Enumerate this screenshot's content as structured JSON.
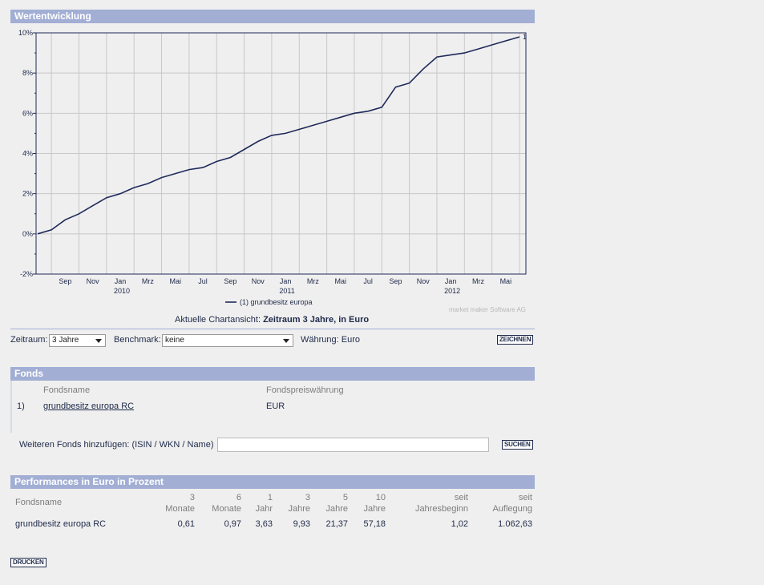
{
  "wertentwicklung": {
    "title": "Wertentwicklung"
  },
  "chart_data": {
    "type": "line",
    "title": "",
    "xlabel": "",
    "ylabel": "",
    "ylim": [
      -2,
      10
    ],
    "y_ticks": [
      "10%",
      "8%",
      "6%",
      "4%",
      "2%",
      "0%",
      "-2%"
    ],
    "x_ticks": [
      "Sep",
      "Nov",
      "Jan",
      "Mrz",
      "Mai",
      "Jul",
      "Sep",
      "Nov",
      "Jan",
      "Mrz",
      "Mai",
      "Jul",
      "Sep",
      "Nov",
      "Jan",
      "Mrz",
      "Mai"
    ],
    "x_years": [
      "2010",
      "2011",
      "2012"
    ],
    "grid": true,
    "legend_position": "bottom-center",
    "end_label": "1",
    "series": [
      {
        "name": "(1)  grundbesitz europa",
        "color": "#1f2a5a",
        "x": [
          "2009-07",
          "2009-08",
          "2009-09",
          "2009-10",
          "2009-11",
          "2009-12",
          "2010-01",
          "2010-02",
          "2010-03",
          "2010-04",
          "2010-05",
          "2010-06",
          "2010-07",
          "2010-08",
          "2010-09",
          "2010-10",
          "2010-11",
          "2010-12",
          "2011-01",
          "2011-02",
          "2011-03",
          "2011-04",
          "2011-05",
          "2011-06",
          "2011-07",
          "2011-08",
          "2011-09",
          "2011-10",
          "2011-11",
          "2011-12",
          "2012-01",
          "2012-02",
          "2012-03",
          "2012-04",
          "2012-05",
          "2012-06"
        ],
        "values": [
          0.0,
          0.2,
          0.7,
          1.0,
          1.4,
          1.8,
          2.0,
          2.3,
          2.5,
          2.8,
          3.0,
          3.2,
          3.3,
          3.6,
          3.8,
          4.2,
          4.6,
          4.9,
          5.0,
          5.2,
          5.4,
          5.6,
          5.8,
          6.0,
          6.1,
          6.3,
          7.3,
          7.5,
          8.2,
          8.8,
          8.9,
          9.0,
          9.2,
          9.4,
          9.6,
          9.8
        ]
      }
    ]
  },
  "chart_notes": {
    "credit": "market maker Software AG",
    "current_view_prefix": "Aktuelle Chartansicht:",
    "current_view_value": "Zeitraum 3 Jahre, in Euro"
  },
  "controls": {
    "zeitraum_label": "Zeitraum:",
    "zeitraum_value": "3 Jahre",
    "benchmark_label": "Benchmark:",
    "benchmark_value": "keine",
    "waehrung": "Währung: Euro",
    "zeichnen_button": "ZEICHNEN"
  },
  "fonds": {
    "title": "Fonds",
    "col_name": "Fondsname",
    "col_currency": "Fondspreiswährung",
    "rows": [
      {
        "index": "1)",
        "name": "grundbesitz europa RC",
        "currency": "EUR"
      }
    ],
    "add_label": "Weiteren Fonds hinzufügen: (ISIN / WKN / Name)",
    "search_placeholder": "",
    "suchen_button": "SUCHEN"
  },
  "performance": {
    "title": "Performances in Euro in Prozent",
    "col_name": "Fondsname",
    "headers": [
      {
        "top": "3",
        "bottom": "Monate"
      },
      {
        "top": "6",
        "bottom": "Monate"
      },
      {
        "top": "1",
        "bottom": "Jahr"
      },
      {
        "top": "3",
        "bottom": "Jahre"
      },
      {
        "top": "5",
        "bottom": "Jahre"
      },
      {
        "top": "10",
        "bottom": "Jahre"
      },
      {
        "top": "seit",
        "bottom": "Jahresbeginn"
      },
      {
        "top": "seit",
        "bottom": "Auflegung"
      }
    ],
    "rows": [
      {
        "name": "grundbesitz europa RC",
        "values": [
          "0,61",
          "0,97",
          "3,63",
          "9,93",
          "21,37",
          "57,18",
          "1,02",
          "1.062,63"
        ]
      }
    ]
  },
  "footer": {
    "drucken_button": "DRUCKEN"
  }
}
